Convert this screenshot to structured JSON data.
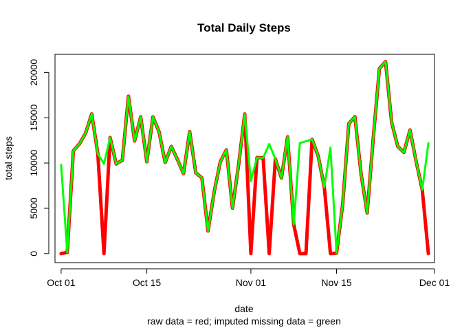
{
  "chart_data": {
    "type": "line",
    "title": "Total Daily Steps",
    "xlabel": "date",
    "ylabel": "total steps",
    "subtitle": "raw data = red; imputed missing data = green",
    "x_ticks": [
      "Oct 01",
      "Oct 15",
      "Nov 01",
      "Nov 15",
      "Dec 01"
    ],
    "y_ticks": [
      "0",
      "5000",
      "10000",
      "15000",
      "20000"
    ],
    "xlim": [
      "2012-09-30",
      "2012-12-01"
    ],
    "ylim": [
      -1000,
      22000
    ],
    "grid": false,
    "x": [
      "2012-10-01",
      "2012-10-02",
      "2012-10-03",
      "2012-10-04",
      "2012-10-05",
      "2012-10-06",
      "2012-10-07",
      "2012-10-08",
      "2012-10-09",
      "2012-10-10",
      "2012-10-11",
      "2012-10-12",
      "2012-10-13",
      "2012-10-14",
      "2012-10-15",
      "2012-10-16",
      "2012-10-17",
      "2012-10-18",
      "2012-10-19",
      "2012-10-20",
      "2012-10-21",
      "2012-10-22",
      "2012-10-23",
      "2012-10-24",
      "2012-10-25",
      "2012-10-26",
      "2012-10-27",
      "2012-10-28",
      "2012-10-29",
      "2012-10-30",
      "2012-10-31",
      "2012-11-01",
      "2012-11-02",
      "2012-11-03",
      "2012-11-04",
      "2012-11-05",
      "2012-11-06",
      "2012-11-07",
      "2012-11-08",
      "2012-11-09",
      "2012-11-10",
      "2012-11-11",
      "2012-11-12",
      "2012-11-13",
      "2012-11-14",
      "2012-11-15",
      "2012-11-16",
      "2012-11-17",
      "2012-11-18",
      "2012-11-19",
      "2012-11-20",
      "2012-11-21",
      "2012-11-22",
      "2012-11-23",
      "2012-11-24",
      "2012-11-25",
      "2012-11-26",
      "2012-11-27",
      "2012-11-28",
      "2012-11-29",
      "2012-11-30"
    ],
    "series": [
      {
        "color": "#ff0000",
        "values": [
          0,
          126,
          11352,
          12116,
          13294,
          15420,
          11015,
          0,
          12811,
          9900,
          10304,
          17382,
          12426,
          15098,
          10139,
          15084,
          13452,
          10056,
          11829,
          10395,
          8821,
          13460,
          8918,
          8355,
          2492,
          6778,
          10119,
          11458,
          5018,
          9819,
          15414,
          0,
          10600,
          10571,
          0,
          10439,
          8334,
          12883,
          3219,
          0,
          0,
          12608,
          10765,
          7336,
          0,
          41,
          5441,
          14339,
          15110,
          8841,
          4472,
          12787,
          20427,
          21194,
          14478,
          11834,
          11162,
          13646,
          10183,
          7047,
          0
        ]
      },
      {
        "color": "#00ff00",
        "values": [
          9800,
          126,
          11352,
          12116,
          13294,
          15420,
          11015,
          9900,
          12811,
          9900,
          10304,
          17382,
          12426,
          15098,
          10139,
          15084,
          13452,
          10056,
          11829,
          10395,
          8821,
          13460,
          8918,
          8355,
          2492,
          6778,
          10119,
          11458,
          5018,
          9819,
          15414,
          8000,
          10600,
          10571,
          12100,
          10439,
          8334,
          12883,
          3219,
          12200,
          12400,
          12608,
          10765,
          7336,
          11700,
          41,
          5441,
          14339,
          15110,
          8841,
          4472,
          12787,
          20427,
          21194,
          14478,
          11834,
          11162,
          13646,
          10183,
          7047,
          12200
        ]
      }
    ]
  }
}
